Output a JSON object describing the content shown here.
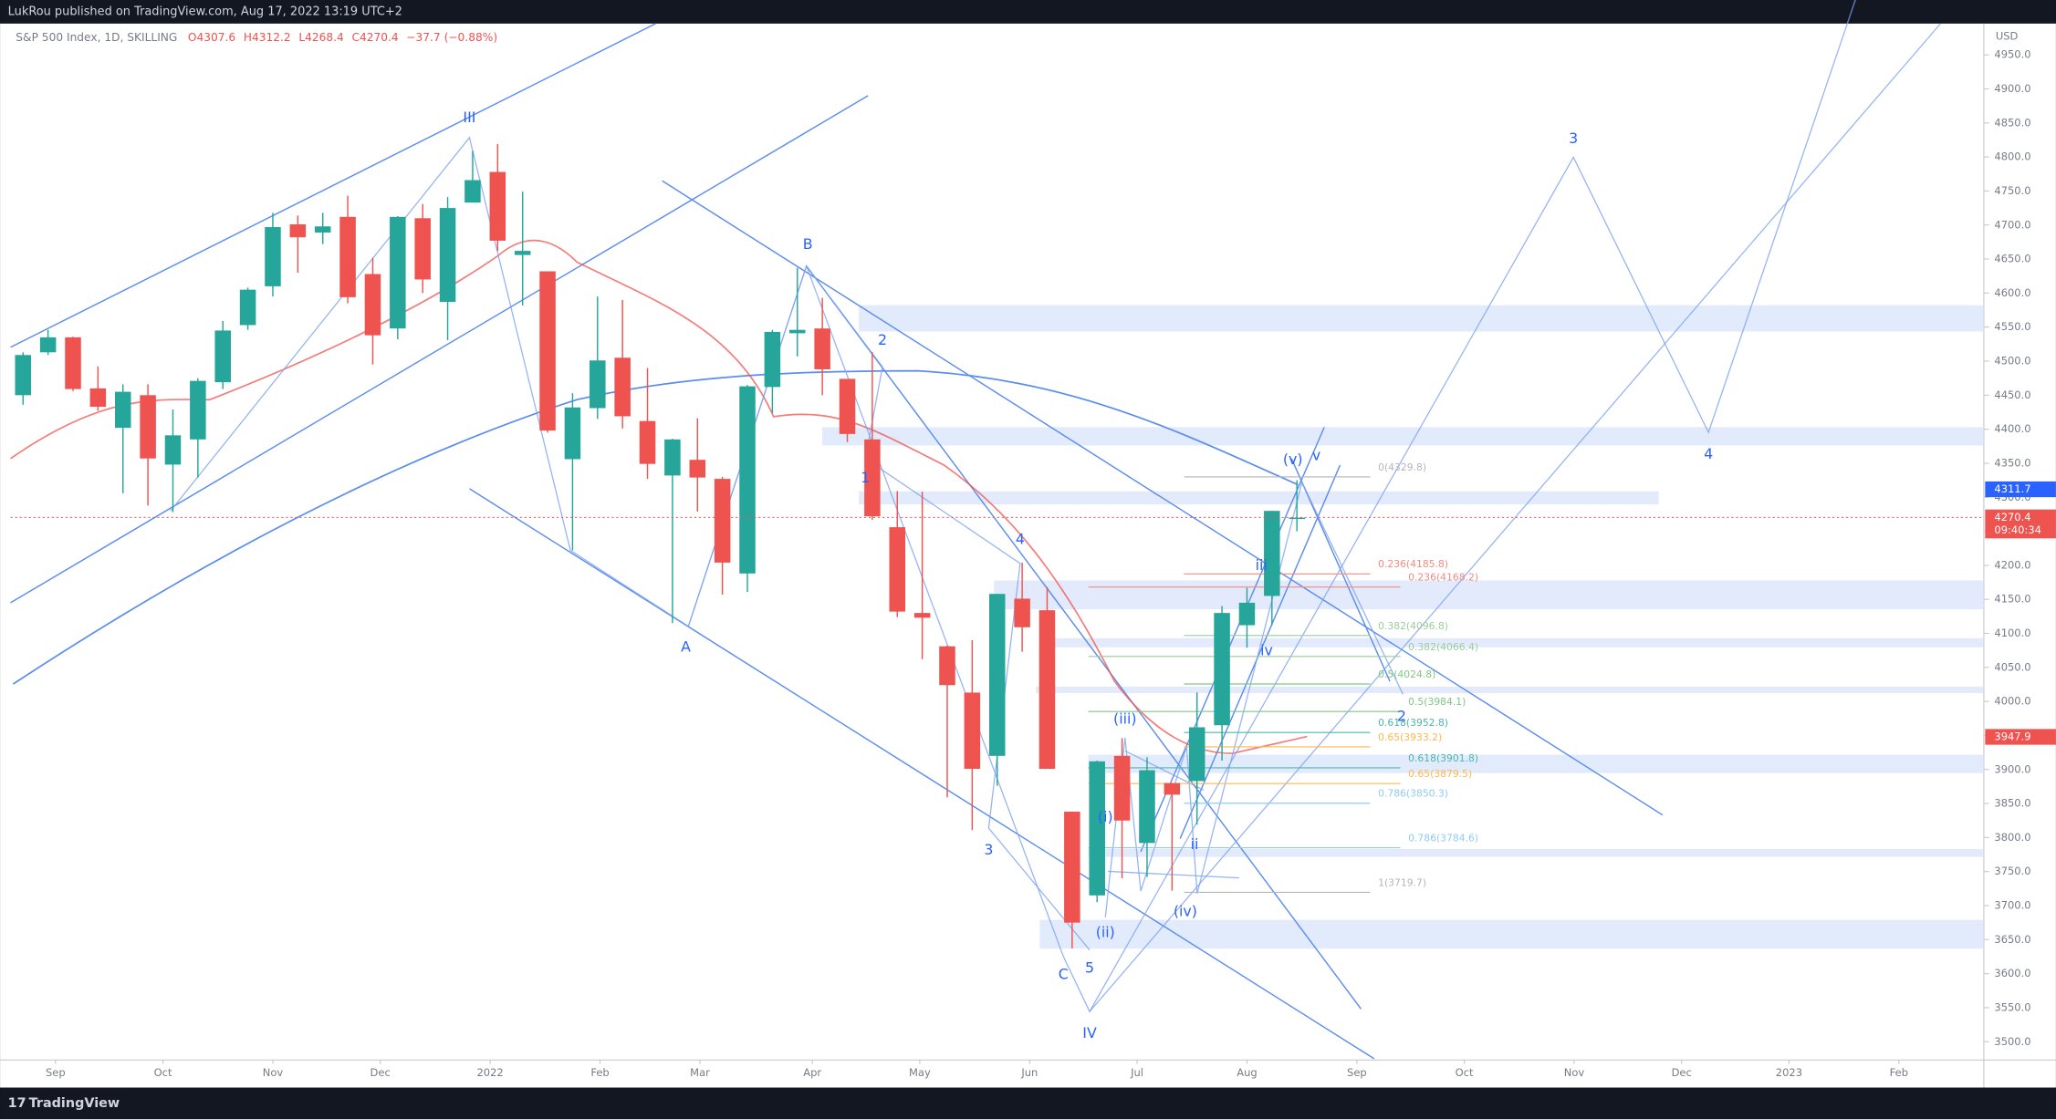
{
  "header": {
    "publisher": "LukRou published on TradingView.com, Aug 17, 2022 13:19 UTC+2",
    "footer": "TradingView"
  },
  "chart_data": {
    "type": "candlestick",
    "symbol": "S&P 500 Index, 1D, SKILLING",
    "legend_values": [
      "O4307.6",
      "H4312.2",
      "L4268.4",
      "C4270.4",
      "−37.7 (−0.88%)"
    ],
    "currency": "USD",
    "categories": [
      null,
      null,
      null,
      null,
      null,
      null,
      null,
      null,
      null,
      null,
      null,
      null,
      null,
      null,
      null,
      null,
      null,
      null,
      null,
      null,
      null,
      null,
      null,
      null,
      null,
      null,
      null,
      null,
      null,
      null,
      null,
      null,
      null,
      null,
      null,
      null,
      null,
      null,
      null,
      null,
      null,
      null,
      null,
      null,
      null,
      null,
      null,
      null,
      null,
      null,
      null,
      null
    ],
    "open": [
      4450,
      4513,
      4535,
      4460,
      4402,
      4450,
      4348,
      4385,
      4469,
      4553,
      4610,
      4701,
      4689,
      4712,
      4628,
      4548,
      4710,
      4587,
      4733,
      4778,
      4656,
      4632,
      4356,
      4431,
      4505,
      4412,
      4332,
      4355,
      4327,
      4188,
      4462,
      4541,
      4548,
      4474,
      4385,
      4256,
      4130,
      4081,
      4013,
      3920,
      4151,
      4134,
      3838,
      3715,
      3920,
      3792,
      3880,
      3883,
      3965,
      4112,
      4155,
      4269
    ],
    "high": [
      4513,
      4546,
      4536,
      4492,
      4466,
      4466,
      4429,
      4475,
      4559,
      4608,
      4718,
      4714,
      4718,
      4743,
      4652,
      4713,
      4731,
      4741,
      4809,
      4819,
      4749,
      4632,
      4453,
      4595,
      4590,
      4490,
      4386,
      4416,
      4330,
      4465,
      4546,
      4637,
      4593,
      4471,
      4513,
      4309,
      4308,
      4082,
      4090,
      4158,
      4204,
      4168,
      3838,
      3913,
      3946,
      3918,
      3880,
      4013,
      4140,
      4167,
      4280,
      4325
    ],
    "low": [
      4436,
      4509,
      4456,
      4427,
      4306,
      4288,
      4278,
      4329,
      4459,
      4546,
      4595,
      4630,
      4672,
      4585,
      4495,
      4532,
      4600,
      4531,
      4733,
      4662,
      4582,
      4395,
      4222,
      4415,
      4401,
      4327,
      4115,
      4279,
      4157,
      4161,
      4424,
      4507,
      4450,
      4381,
      4267,
      4124,
      4062,
      3859,
      3811,
      3876,
      4073,
      3901,
      3637,
      3705,
      3740,
      3742,
      3722,
      3819,
      3913,
      4079,
      4112,
      4250
    ],
    "close": [
      4509,
      4535,
      4459,
      4433,
      4455,
      4357,
      4391,
      4471,
      4545,
      4605,
      4697,
      4682,
      4698,
      4594,
      4538,
      4712,
      4620,
      4725,
      4766,
      4677,
      4662,
      4398,
      4432,
      4501,
      4419,
      4349,
      4385,
      4329,
      4204,
      4463,
      4543,
      4546,
      4488,
      4393,
      4272,
      4132,
      4123,
      4024,
      3901,
      4158,
      4109,
      3901,
      3675,
      3912,
      3825,
      3899,
      3863,
      3962,
      4130,
      4145,
      4280,
      4270
    ],
    "up_color": "#26a69a",
    "down_color": "#ef5350",
    "xlim": [
      -0.5,
      78.5
    ],
    "xticks": [
      {
        "value": 1.3,
        "label": "Sep"
      },
      {
        "value": 5.6,
        "label": "Oct"
      },
      {
        "value": 10,
        "label": "Nov"
      },
      {
        "value": 14.3,
        "label": "Dec"
      },
      {
        "value": 18.7,
        "label": "2022"
      },
      {
        "value": 23.1,
        "label": "Feb"
      },
      {
        "value": 27.1,
        "label": "Mar"
      },
      {
        "value": 31.6,
        "label": "Apr"
      },
      {
        "value": 35.9,
        "label": "May"
      },
      {
        "value": 40.3,
        "label": "Jun"
      },
      {
        "value": 44.6,
        "label": "Jul"
      },
      {
        "value": 49,
        "label": "Aug"
      },
      {
        "value": 53.4,
        "label": "Sep"
      },
      {
        "value": 57.7,
        "label": "Oct"
      },
      {
        "value": 62.1,
        "label": "Nov"
      },
      {
        "value": 66.4,
        "label": "Dec"
      },
      {
        "value": 70.7,
        "label": "2023"
      },
      {
        "value": 75.1,
        "label": "Feb"
      }
    ],
    "ylim": [
      3475,
      4996
    ],
    "yticks": [
      {
        "value": 3500,
        "label": "3500.0"
      },
      {
        "value": 3550,
        "label": "3550.0"
      },
      {
        "value": 3600,
        "label": "3600.0"
      },
      {
        "value": 3650,
        "label": "3650.0"
      },
      {
        "value": 3700,
        "label": "3700.0"
      },
      {
        "value": 3750,
        "label": "3750.0"
      },
      {
        "value": 3800,
        "label": "3800.0"
      },
      {
        "value": 3850,
        "label": "3850.0"
      },
      {
        "value": 3900,
        "label": "3900.0"
      },
      {
        "value": 3950,
        "label": "3950.0"
      },
      {
        "value": 4000,
        "label": "4000.0"
      },
      {
        "value": 4050,
        "label": "4050.0"
      },
      {
        "value": 4100,
        "label": "4100.0"
      },
      {
        "value": 4150,
        "label": "4150.0"
      },
      {
        "value": 4200,
        "label": "4200.0"
      },
      {
        "value": 4250,
        "label": "4250.0"
      },
      {
        "value": 4300,
        "label": "4300.0"
      },
      {
        "value": 4350,
        "label": "4350.0"
      },
      {
        "value": 4400,
        "label": "4400.0"
      },
      {
        "value": 4450,
        "label": "4450.0"
      },
      {
        "value": 4500,
        "label": "4500.0"
      },
      {
        "value": 4550,
        "label": "4550.0"
      },
      {
        "value": 4600,
        "label": "4600.0"
      },
      {
        "value": 4650,
        "label": "4650.0"
      },
      {
        "value": 4700,
        "label": "4700.0"
      },
      {
        "value": 4750,
        "label": "4750.0"
      },
      {
        "value": 4800,
        "label": "4800.0"
      },
      {
        "value": 4850,
        "label": "4850.0"
      },
      {
        "value": 4900,
        "label": "4900.0"
      },
      {
        "value": 4950,
        "label": "4950.0"
      }
    ],
    "grid": false,
    "price_labels": {
      "line_level": 4311.7,
      "last": 4270.4,
      "countdown": "09:40:34",
      "ma_level": 3947.9
    },
    "wave_labels": [
      "III",
      "B",
      "2",
      "1",
      "A",
      "4",
      "3",
      "5",
      "C",
      "IV",
      "(iii)",
      "(i)",
      "(ii)",
      "(iv)",
      "ii",
      "iii",
      "iv",
      "(v)",
      "v",
      "2",
      "3",
      "4"
    ],
    "fib_labels": [
      "0(4329.8)",
      "0.236(4185.8)",
      "0.236(4168.2)",
      "0.382(4096.8)",
      "0.382(4066.4)",
      "0.5(4024.8)",
      "0.5(3984.1)",
      "0.618(3952.8)",
      "0.65(3933.2)",
      "0.618(3901.8)",
      "0.65(3879.5)",
      "0.786(3850.3)",
      "0.786(3784.6)",
      "1(3719.7)"
    ]
  }
}
